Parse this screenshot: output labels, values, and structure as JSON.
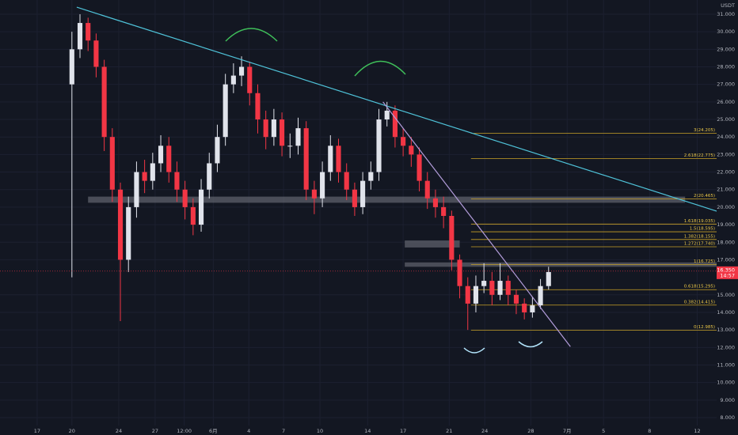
{
  "chart_data": {
    "type": "candlestick",
    "currency": "USDT",
    "up_color": "#e0e3eb",
    "down_color": "#f23645",
    "grid": true,
    "xlim": [
      -8.9,
      79.8
    ],
    "ylim": [
      7.55,
      31.81
    ],
    "yticks": [
      {
        "value": 31,
        "label": "31.000"
      },
      {
        "value": 30,
        "label": "30.000"
      },
      {
        "value": 29,
        "label": "29.000"
      },
      {
        "value": 28,
        "label": "28.000"
      },
      {
        "value": 27,
        "label": "27.000"
      },
      {
        "value": 26,
        "label": "26.000"
      },
      {
        "value": 25,
        "label": "25.000"
      },
      {
        "value": 24,
        "label": "24.000"
      },
      {
        "value": 23,
        "label": "23.000"
      },
      {
        "value": 22,
        "label": "22.000"
      },
      {
        "value": 21,
        "label": "21.000"
      },
      {
        "value": 20,
        "label": "20.000"
      },
      {
        "value": 19,
        "label": "19.000"
      },
      {
        "value": 18,
        "label": "18.000"
      },
      {
        "value": 17,
        "label": "17.000"
      },
      {
        "value": 15,
        "label": "15.000"
      },
      {
        "value": 14,
        "label": "14.000"
      },
      {
        "value": 13,
        "label": "13.000"
      },
      {
        "value": 12,
        "label": "12.000"
      },
      {
        "value": 11,
        "label": "11.000"
      },
      {
        "value": 10,
        "label": "10.000"
      },
      {
        "value": 9,
        "label": "9.000"
      },
      {
        "value": 8,
        "label": "8.000"
      }
    ],
    "xticks": [
      {
        "value": -4.3,
        "label": "17"
      },
      {
        "value": 0,
        "label": "20"
      },
      {
        "value": 5.8,
        "label": "24"
      },
      {
        "value": 10.3,
        "label": "27"
      },
      {
        "value": 13.9,
        "label": "12:00"
      },
      {
        "value": 17.5,
        "label": "6月"
      },
      {
        "value": 21.9,
        "label": "4"
      },
      {
        "value": 26.2,
        "label": "7"
      },
      {
        "value": 30.7,
        "label": "10"
      },
      {
        "value": 36.6,
        "label": "14"
      },
      {
        "value": 41,
        "label": "17"
      },
      {
        "value": 46.7,
        "label": "21"
      },
      {
        "value": 51.1,
        "label": "24"
      },
      {
        "value": 56.8,
        "label": "28"
      },
      {
        "value": 61.3,
        "label": "7月"
      },
      {
        "value": 65.8,
        "label": "5"
      },
      {
        "value": 71.5,
        "label": "8"
      },
      {
        "value": 77.4,
        "label": "12"
      }
    ],
    "x": [
      0,
      1,
      2,
      3,
      4,
      5,
      6,
      7,
      8,
      9,
      10,
      11,
      12,
      13,
      14,
      15,
      16,
      17,
      18,
      19,
      20,
      21,
      22,
      23,
      24,
      25,
      26,
      27,
      28,
      29,
      30,
      31,
      32,
      33,
      34,
      35,
      36,
      37,
      38,
      39,
      40,
      41,
      42,
      43,
      44,
      45,
      46,
      47,
      48,
      49,
      50,
      51,
      52,
      53,
      54,
      55,
      56,
      57,
      58,
      59
    ],
    "open": [
      27,
      29,
      30.5,
      29.5,
      28,
      24,
      21,
      17,
      20,
      22,
      21.5,
      22.5,
      23.5,
      22,
      21,
      20,
      19,
      21,
      22.5,
      24,
      27,
      27.5,
      28,
      26.5,
      25,
      24,
      25,
      23.5,
      23.5,
      24.5,
      21,
      20.5,
      22,
      23.5,
      22,
      21,
      20,
      21.5,
      22,
      25,
      25.5,
      24,
      23.5,
      23,
      21.5,
      20.5,
      20,
      19.5,
      17,
      15.5,
      14.5,
      15.5,
      15.8,
      15,
      15.8,
      15,
      14.5,
      14,
      14.4,
      15.5
    ],
    "high": [
      30,
      31,
      30.8,
      29.9,
      28.4,
      24.5,
      21.4,
      20.6,
      22.6,
      22.7,
      23.1,
      24.1,
      24,
      22.6,
      21.5,
      20.5,
      21.6,
      23.1,
      24.7,
      27.6,
      28.2,
      28.6,
      28.3,
      27,
      25.5,
      25.6,
      25.4,
      24.2,
      25.1,
      24.9,
      21.5,
      22.6,
      24.1,
      23.9,
      22.5,
      21.4,
      22,
      22.6,
      25.6,
      26,
      25.8,
      24.5,
      24,
      23.4,
      22,
      21,
      20.6,
      19.8,
      17.3,
      16,
      16.1,
      16.8,
      16.3,
      16.8,
      16.1,
      15.3,
      14.8,
      14.9,
      15.9,
      16.6
    ],
    "low": [
      16,
      28.5,
      28.9,
      27.4,
      23.2,
      20.3,
      13.5,
      16.3,
      19.4,
      20.8,
      21,
      22,
      21.4,
      20.3,
      19.3,
      18.4,
      18.6,
      20.5,
      22,
      23.5,
      26.5,
      26.9,
      25.8,
      24.2,
      23.3,
      23.5,
      22.9,
      22.8,
      23,
      20.4,
      19.6,
      20,
      21.5,
      21.4,
      20.4,
      19.5,
      19.6,
      21,
      21.5,
      24.6,
      23.4,
      22.9,
      22.3,
      20.9,
      19.9,
      19.4,
      18.8,
      16.4,
      14.8,
      13,
      14,
      15.1,
      14.4,
      14.7,
      14.4,
      13.9,
      13.6,
      13.7,
      14.2,
      15.3
    ],
    "close": [
      29,
      30.5,
      29.5,
      28,
      24,
      21,
      17,
      20,
      22,
      21.5,
      22.5,
      23.5,
      22,
      21,
      20,
      19,
      21,
      22.5,
      24,
      27,
      27.5,
      28,
      26.5,
      25,
      24,
      25,
      23.5,
      23.5,
      24.5,
      21,
      20.5,
      22,
      23.5,
      22,
      21,
      20,
      21.5,
      22,
      25,
      25.5,
      24,
      23.5,
      23,
      21.5,
      20.5,
      20,
      19.5,
      17,
      15.5,
      14.5,
      15.5,
      15.8,
      15,
      15.8,
      15,
      14.5,
      14,
      14.4,
      15.5,
      16.3
    ],
    "last_price": {
      "value": 16.35,
      "label": "16.350"
    },
    "countdown": "14:57",
    "trendlines": [
      {
        "color": "#4fc3d9",
        "x": [
          0.6,
          80.3
        ],
        "y": [
          31.4,
          19.7
        ]
      },
      {
        "color": "#b39ddb",
        "x": [
          38.5,
          61.7
        ],
        "y": [
          26.0,
          12.05
        ]
      }
    ],
    "zones": [
      {
        "x": [
          2,
          75.9
        ],
        "y": [
          20.25,
          20.6
        ]
      },
      {
        "x": [
          41.2,
          48.0
        ],
        "y": [
          17.7,
          18.1
        ]
      },
      {
        "x": [
          41.2,
          79.8
        ],
        "y": [
          16.6,
          16.85
        ]
      }
    ],
    "fib": {
      "color": "#c9a227",
      "x": [
        49.4,
        79.8
      ],
      "levels": [
        {
          "value": 24.205,
          "label": "3(24.205)"
        },
        {
          "value": 22.775,
          "label": "2.618(22.775)"
        },
        {
          "value": 20.465,
          "label": "2(20.465)"
        },
        {
          "value": 19.035,
          "label": "1.618(19.035)"
        },
        {
          "value": 18.595,
          "label": "1.5(18.595)"
        },
        {
          "value": 18.155,
          "label": "1.382(18.155)"
        },
        {
          "value": 17.74,
          "label": "1.272(17.740)"
        },
        {
          "value": 16.725,
          "label": "1(16.725)"
        },
        {
          "value": 15.295,
          "label": "0.618(15.295)"
        },
        {
          "value": 14.415,
          "label": "0.382(14.415)"
        },
        {
          "value": 12.985,
          "label": "0(12.985)"
        }
      ]
    }
  }
}
